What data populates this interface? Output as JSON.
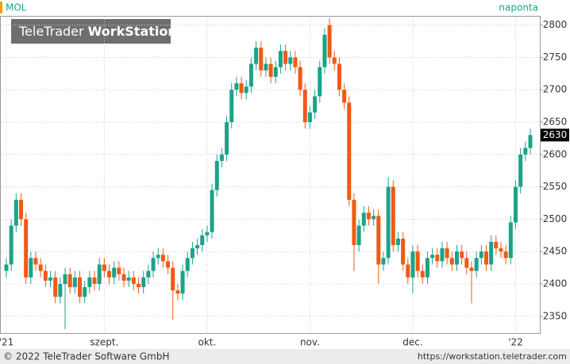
{
  "chart_data": {
    "type": "candlestick",
    "title": "MOL",
    "subtitle": "naponta",
    "categories": [
      "'21",
      null,
      null,
      null,
      null,
      null,
      null,
      null,
      null,
      null,
      null,
      null,
      null,
      null,
      null,
      null,
      null,
      null,
      null,
      null,
      "szept.",
      null,
      null,
      null,
      null,
      null,
      null,
      null,
      null,
      null,
      null,
      null,
      null,
      null,
      null,
      null,
      null,
      null,
      null,
      null,
      null,
      "okt.",
      null,
      null,
      null,
      null,
      null,
      null,
      null,
      null,
      null,
      null,
      null,
      null,
      null,
      null,
      null,
      null,
      null,
      null,
      null,
      null,
      "nov.",
      null,
      null,
      null,
      null,
      null,
      null,
      null,
      null,
      null,
      null,
      null,
      null,
      null,
      null,
      null,
      null,
      null,
      null,
      null,
      null,
      "dec.",
      null,
      null,
      null,
      null,
      null,
      null,
      null,
      null,
      null,
      null,
      null,
      null,
      null,
      null,
      null,
      null,
      null,
      null,
      null,
      null,
      "'22",
      null,
      null,
      null
    ],
    "open": [
      2420,
      2430,
      2490,
      2530,
      2500,
      2410,
      2440,
      2430,
      2420,
      2405,
      2410,
      2380,
      2400,
      2415,
      2395,
      2410,
      2380,
      2395,
      2410,
      2400,
      2430,
      2420,
      2410,
      2425,
      2415,
      2405,
      2410,
      2400,
      2395,
      2410,
      2420,
      2440,
      2445,
      2435,
      2425,
      2390,
      2385,
      2420,
      2440,
      2455,
      2460,
      2475,
      2480,
      2545,
      2590,
      2600,
      2650,
      2700,
      2710,
      2695,
      2705,
      2740,
      2765,
      2730,
      2740,
      2720,
      2735,
      2760,
      2740,
      2750,
      2735,
      2700,
      2650,
      2665,
      2690,
      2735,
      2800,
      2750,
      2740,
      2700,
      2680,
      2530,
      2460,
      2490,
      2510,
      2500,
      2505,
      2430,
      2440,
      2550,
      2460,
      2470,
      2430,
      2410,
      2450,
      2420,
      2410,
      2440,
      2445,
      2435,
      2455,
      2440,
      2430,
      2450,
      2440,
      2425,
      2420,
      2440,
      2450,
      2430,
      2465,
      2455,
      2450,
      2440,
      2495,
      2550,
      2600,
      2610
    ],
    "high": [
      2440,
      2500,
      2540,
      2540,
      2510,
      2450,
      2450,
      2440,
      2430,
      2420,
      2420,
      2410,
      2425,
      2425,
      2420,
      2420,
      2405,
      2420,
      2420,
      2440,
      2440,
      2430,
      2435,
      2435,
      2425,
      2420,
      2420,
      2410,
      2420,
      2430,
      2450,
      2455,
      2455,
      2445,
      2435,
      2400,
      2430,
      2450,
      2465,
      2470,
      2485,
      2490,
      2555,
      2600,
      2610,
      2660,
      2710,
      2720,
      2720,
      2715,
      2750,
      2775,
      2775,
      2750,
      2750,
      2745,
      2770,
      2770,
      2760,
      2760,
      2745,
      2710,
      2675,
      2700,
      2745,
      2795,
      2810,
      2760,
      2750,
      2710,
      2690,
      2540,
      2500,
      2520,
      2520,
      2515,
      2515,
      2450,
      2565,
      2560,
      2480,
      2480,
      2440,
      2460,
      2460,
      2430,
      2450,
      2455,
      2455,
      2465,
      2465,
      2450,
      2460,
      2460,
      2450,
      2435,
      2450,
      2460,
      2460,
      2475,
      2475,
      2465,
      2460,
      2505,
      2560,
      2610,
      2620,
      2640
    ],
    "low": [
      2410,
      2420,
      2480,
      2490,
      2400,
      2400,
      2420,
      2410,
      2395,
      2395,
      2370,
      2370,
      2330,
      2385,
      2385,
      2370,
      2370,
      2385,
      2390,
      2390,
      2410,
      2400,
      2400,
      2405,
      2395,
      2395,
      2390,
      2385,
      2385,
      2400,
      2410,
      2430,
      2425,
      2415,
      2345,
      2375,
      2375,
      2410,
      2430,
      2445,
      2450,
      2465,
      2470,
      2535,
      2580,
      2590,
      2640,
      2690,
      2685,
      2685,
      2695,
      2730,
      2720,
      2720,
      2710,
      2710,
      2725,
      2730,
      2730,
      2725,
      2690,
      2640,
      2640,
      2655,
      2680,
      2725,
      2740,
      2730,
      2690,
      2670,
      2520,
      2420,
      2450,
      2480,
      2490,
      2490,
      2400,
      2420,
      2430,
      2450,
      2450,
      2420,
      2400,
      2385,
      2410,
      2400,
      2400,
      2430,
      2425,
      2425,
      2430,
      2420,
      2420,
      2430,
      2415,
      2370,
      2410,
      2430,
      2420,
      2420,
      2445,
      2440,
      2430,
      2430,
      2485,
      2540,
      2590,
      2600
    ],
    "close": [
      2430,
      2490,
      2530,
      2500,
      2410,
      2440,
      2430,
      2420,
      2405,
      2410,
      2380,
      2400,
      2415,
      2395,
      2410,
      2380,
      2395,
      2410,
      2400,
      2430,
      2420,
      2410,
      2425,
      2415,
      2405,
      2410,
      2400,
      2395,
      2410,
      2420,
      2440,
      2445,
      2435,
      2425,
      2390,
      2385,
      2420,
      2440,
      2455,
      2460,
      2475,
      2480,
      2545,
      2590,
      2600,
      2650,
      2700,
      2710,
      2695,
      2705,
      2740,
      2765,
      2730,
      2740,
      2720,
      2735,
      2760,
      2740,
      2750,
      2735,
      2700,
      2650,
      2665,
      2690,
      2735,
      2785,
      2750,
      2740,
      2700,
      2680,
      2530,
      2460,
      2490,
      2510,
      2500,
      2505,
      2430,
      2440,
      2550,
      2460,
      2470,
      2430,
      2410,
      2450,
      2420,
      2410,
      2440,
      2445,
      2435,
      2455,
      2440,
      2430,
      2450,
      2440,
      2425,
      2420,
      2440,
      2450,
      2430,
      2465,
      2455,
      2450,
      2440,
      2495,
      2550,
      2600,
      2610,
      2630
    ],
    "ylim": [
      2324,
      2813
    ],
    "yticks": [
      2350,
      2400,
      2450,
      2500,
      2550,
      2600,
      2650,
      2700,
      2750,
      2800
    ],
    "up_color": "#1aa38a",
    "down_color": "#f05a14",
    "grid": true
  },
  "logo": {
    "left": "TeleTrader",
    "right": "WorkStation"
  },
  "footer": {
    "copyright": "© 2022 TeleTrader Software GmbH",
    "url": "https://workstation.teletrader.com"
  }
}
